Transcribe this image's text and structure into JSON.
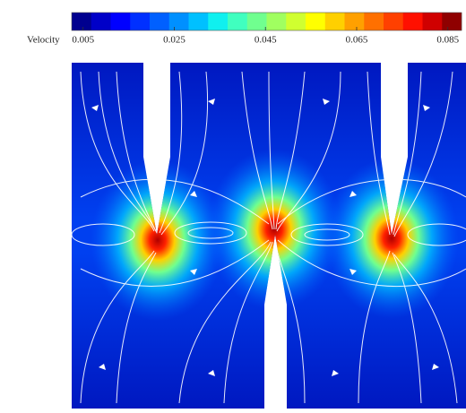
{
  "colorbar": {
    "label": "Velocity",
    "clim": [
      0.0025,
      0.088
    ],
    "ticks": [
      0.005,
      0.025,
      0.045,
      0.065,
      0.085
    ],
    "colors": [
      "#00008f",
      "#0000c8",
      "#0000ff",
      "#0030ff",
      "#0060ff",
      "#0090ff",
      "#00c0ff",
      "#10f0ef",
      "#40ffbf",
      "#70ff8f",
      "#a0ff60",
      "#d0ff30",
      "#ffff00",
      "#ffd000",
      "#ffa000",
      "#ff7000",
      "#ff4000",
      "#ff1000",
      "#d00000",
      "#8f0000"
    ]
  }
}
